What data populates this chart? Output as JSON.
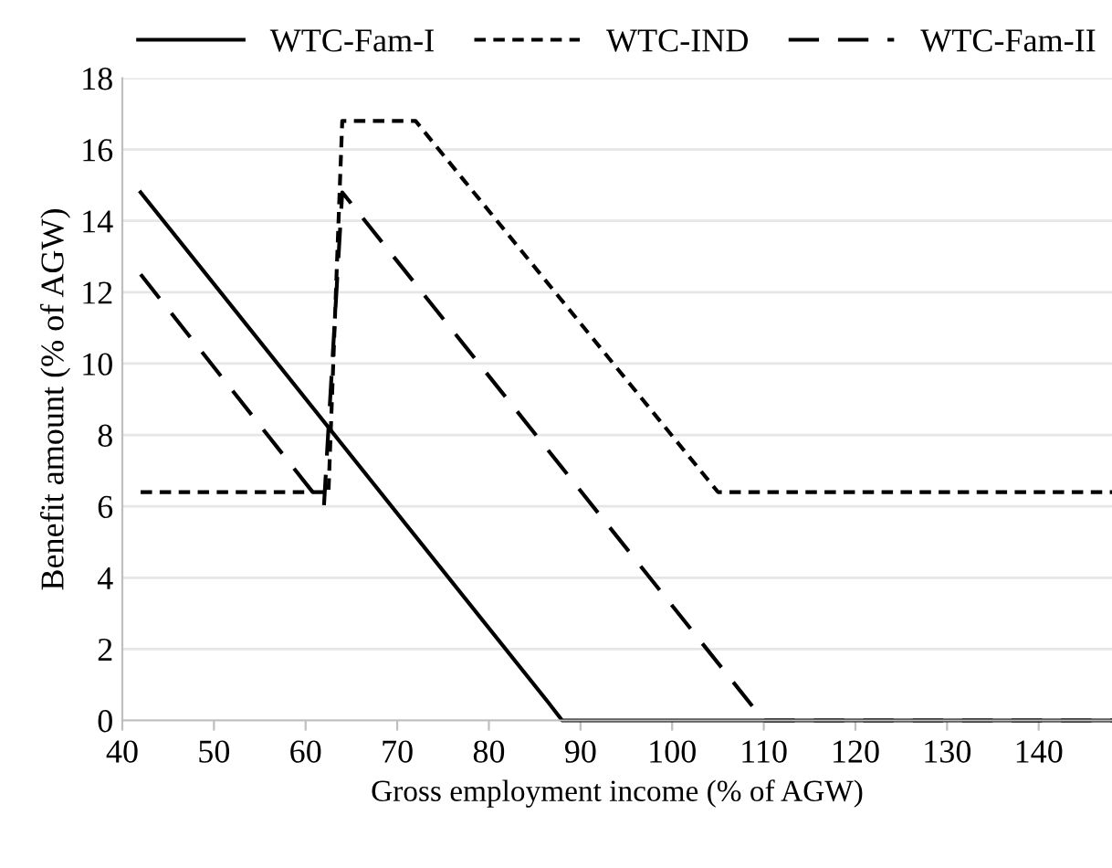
{
  "chart_data": {
    "type": "line",
    "xlabel": "Gross employment income (% of AGW)",
    "ylabel": "Benefit amount (% of AGW)",
    "xlim": [
      40,
      148
    ],
    "xticks": [
      40,
      50,
      60,
      70,
      80,
      90,
      100,
      110,
      120,
      130,
      140
    ],
    "ylim": [
      0,
      18
    ],
    "yticks": [
      0,
      2,
      4,
      6,
      8,
      10,
      12,
      14,
      16,
      18
    ],
    "grid": "y",
    "legend": "top",
    "marker": "none",
    "series": [
      {
        "name": "WTC-Fam-I",
        "color": "#000000",
        "line_style": "solid",
        "x": [
          42,
          86.5,
          88,
          148
        ],
        "values": [
          14.8,
          0.5,
          0,
          0
        ]
      },
      {
        "name": "WTC-IND",
        "color": "#000000",
        "line_style": "dotted",
        "x": [
          42,
          62.5,
          64,
          72,
          105,
          148
        ],
        "values": [
          6.4,
          6.4,
          16.8,
          16.8,
          6.4,
          6.4
        ]
      },
      {
        "name": "WTC-Fam-II",
        "color": "#000000",
        "line_style": "dashed",
        "x": [
          42,
          62,
          64,
          110,
          148
        ],
        "values": [
          12.5,
          6.0,
          14.8,
          0,
          0
        ]
      }
    ]
  }
}
